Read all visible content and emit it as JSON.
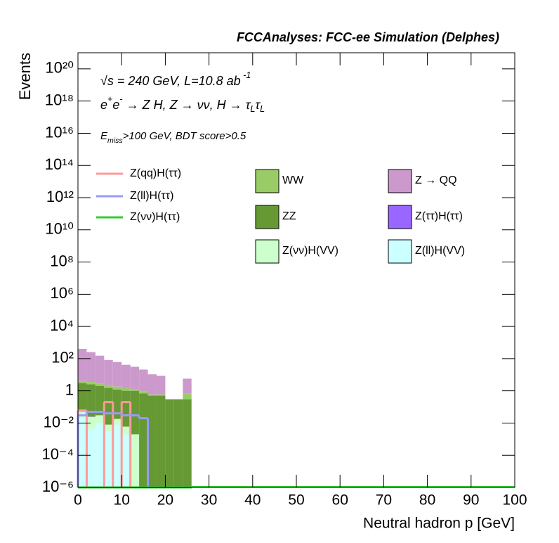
{
  "chart_data": {
    "type": "stacked-histogram",
    "title": "FCCAnalyses: FCC-ee Simulation (Delphes)",
    "annotations": [
      [
        {
          "text": "√s = 240 GeV, L=10.8 ab"
        },
        {
          "text": " -1",
          "shift": "super"
        }
      ],
      [
        {
          "text": "e"
        },
        {
          "text": "+",
          "shift": "super"
        },
        {
          "text": "e"
        },
        {
          "text": "-",
          "shift": "super"
        },
        {
          "text": " → Z H, Z  → νν, H  → τ"
        },
        {
          "text": "L",
          "shift": "sub"
        },
        {
          "text": "τ"
        },
        {
          "text": "L",
          "shift": "sub"
        }
      ],
      [
        {
          "text": "E"
        },
        {
          "text": "miss",
          "shift": "sub"
        },
        {
          "text": ">100 GeV, BDT score>0.5"
        }
      ]
    ],
    "x_label": "Neutral hadron p [GeV]",
    "y_label": "Events",
    "log_y": true,
    "xlim": [
      0,
      100
    ],
    "xticks": [
      0,
      10,
      20,
      30,
      40,
      50,
      60,
      70,
      80,
      90,
      100
    ],
    "ylim": [
      1e-06,
      1e+21
    ],
    "yticks": [
      {
        "value": 1e-06,
        "label": "10⁻⁶"
      },
      {
        "value": 0.0001,
        "label": "10⁻⁴"
      },
      {
        "value": 0.01,
        "label": "10⁻²"
      },
      1,
      {
        "value": 100,
        "label": "10²"
      },
      {
        "value": 10000,
        "label": "10⁴"
      },
      {
        "value": 1000000.0,
        "label": "10⁶"
      },
      {
        "value": 100000000.0,
        "label": "10⁸"
      },
      {
        "value": 10000000000.0,
        "label": "10¹⁰"
      },
      {
        "value": 1000000000000.0,
        "label": "10¹²"
      },
      {
        "value": 100000000000000.0,
        "label": "10¹⁴"
      },
      {
        "value": 1e+16,
        "label": "10¹⁶"
      },
      {
        "value": 1e+18,
        "label": "10¹⁸"
      },
      {
        "value": 1e+20,
        "label": "10²⁰"
      }
    ],
    "bins": [
      0,
      2,
      4,
      6,
      8,
      10,
      12,
      14,
      16,
      18,
      20,
      22,
      24,
      26
    ],
    "series": [
      {
        "name": "Z(ll)H(VV)",
        "style": "stack",
        "color": "#ccffff",
        "values": [
          0.02,
          0.004,
          0.01,
          0.003,
          0.008,
          0.002,
          0,
          0,
          0,
          0,
          0,
          0,
          0
        ]
      },
      {
        "name": "Z(νν)H(VV)",
        "style": "stack",
        "color": "#ccffcc",
        "values": [
          0.03,
          0.02,
          0.02,
          0.005,
          0.01,
          0.004,
          0.002,
          0,
          0,
          0,
          0,
          0,
          0
        ]
      },
      {
        "name": "Z(ττ)H(ττ)",
        "style": "stack",
        "color": "#9966ff",
        "values": [
          0.001,
          0.001,
          0.0005,
          0,
          0,
          0,
          0,
          0,
          0,
          0,
          0,
          0,
          0
        ]
      },
      {
        "name": "ZZ",
        "style": "stack",
        "color": "#669933",
        "values": [
          3,
          2.5,
          2,
          1.5,
          1.2,
          1,
          1,
          0.7,
          0.5,
          0.5,
          0.3,
          0.3,
          0.3
        ]
      },
      {
        "name": "WW",
        "style": "stack",
        "color": "#99cc66",
        "values": [
          1,
          1,
          0.8,
          0.8,
          0.6,
          0.5,
          0.3,
          0.2,
          0.1,
          0.1,
          0,
          0,
          0.4
        ]
      },
      {
        "name": "Z → QQ",
        "style": "stack",
        "color": "#cc99cc",
        "values": [
          400,
          250,
          150,
          80,
          60,
          40,
          30,
          20,
          10,
          8,
          0,
          0,
          5
        ]
      },
      {
        "name": "Z(qq)H(ττ)",
        "style": "step",
        "color": "#ff9999",
        "values": [
          0.06,
          0,
          0,
          0.2,
          0,
          0.2,
          0,
          0,
          0,
          0,
          0,
          0,
          0
        ]
      },
      {
        "name": "Z(ll)H(ττ)",
        "style": "step",
        "color": "#9999ff",
        "values": [
          0.03,
          0.05,
          0.05,
          0.04,
          0.04,
          0.03,
          0.03,
          0.02,
          0,
          0,
          0,
          0,
          0
        ]
      },
      {
        "name": "Z(νν)H(ττ)",
        "style": "step",
        "color": "#33cc33",
        "values": [
          0,
          0,
          0,
          0,
          0,
          0,
          0,
          0,
          0,
          0,
          0,
          0,
          0
        ]
      }
    ]
  }
}
